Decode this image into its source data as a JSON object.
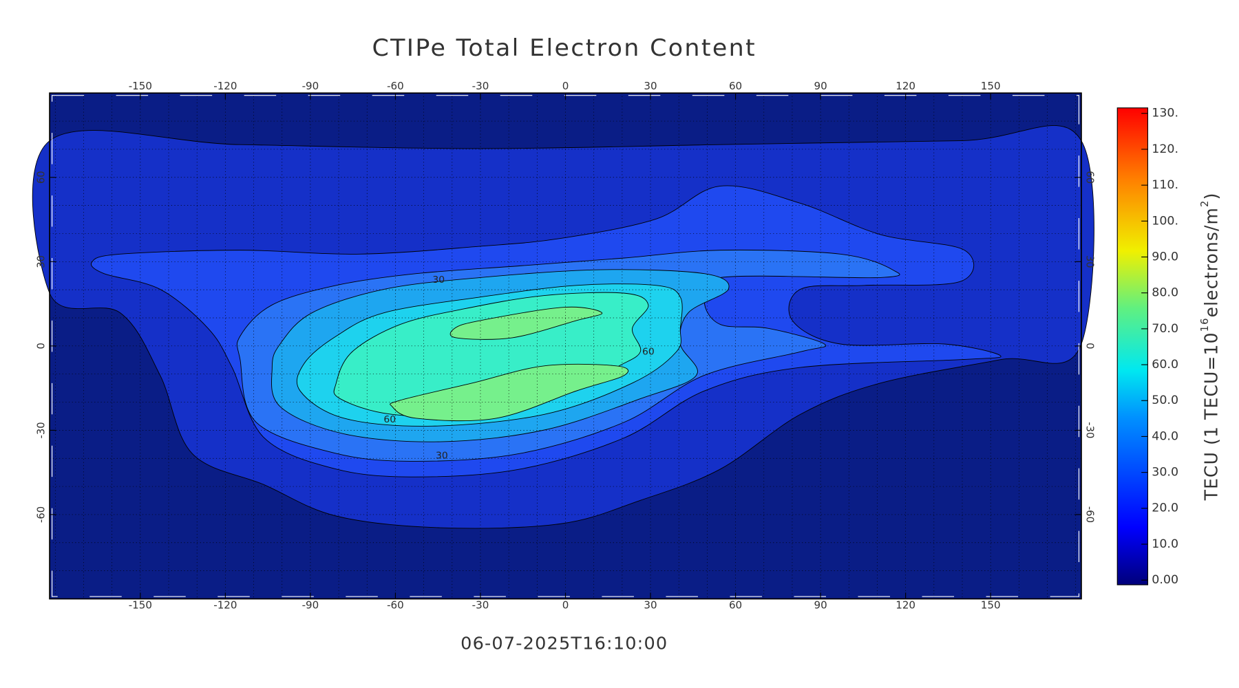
{
  "chart_data": {
    "type": "contour",
    "title": "CTIPe Total Electron Content",
    "subtitle": "06-07-2025T16:10:00",
    "xlim": [
      -182,
      182
    ],
    "ylim": [
      -90,
      90
    ],
    "xticks": [
      -150,
      -120,
      -90,
      -60,
      -30,
      0,
      30,
      60,
      90,
      120,
      150
    ],
    "yticks": [
      -60,
      -30,
      0,
      30,
      60
    ],
    "grid": true,
    "background_color": "#0a1d86",
    "contour_levels": [
      10,
      20,
      30,
      40,
      50,
      60,
      70
    ],
    "colors": [
      "#1530c8",
      "#1f49ef",
      "#2a73f5",
      "#1ea6f0",
      "#1ed2ee",
      "#38eec8",
      "#76f08c"
    ],
    "contour_labels": [
      30,
      60,
      60,
      30
    ],
    "colorbar": {
      "ylim": [
        0,
        130
      ],
      "yticks": [
        {
          "value": 0,
          "label": "0.00"
        },
        {
          "value": 10,
          "label": "10.0"
        },
        {
          "value": 20,
          "label": "20.0"
        },
        {
          "value": 30,
          "label": "30.0"
        },
        {
          "value": 40,
          "label": "40.0"
        },
        {
          "value": 50,
          "label": "50.0"
        },
        {
          "value": 60,
          "label": "60.0"
        },
        {
          "value": 70,
          "label": "70.0"
        },
        {
          "value": 80,
          "label": "80.0"
        },
        {
          "value": 90,
          "label": "90.0"
        },
        {
          "value": 100,
          "label": "100."
        },
        {
          "value": 110,
          "label": "110."
        },
        {
          "value": 120,
          "label": "120."
        },
        {
          "value": 130,
          "label": "130."
        }
      ],
      "label": [
        "TECU (1 TECU=10",
        "16",
        "electrons/m",
        "2",
        ")"
      ]
    }
  }
}
